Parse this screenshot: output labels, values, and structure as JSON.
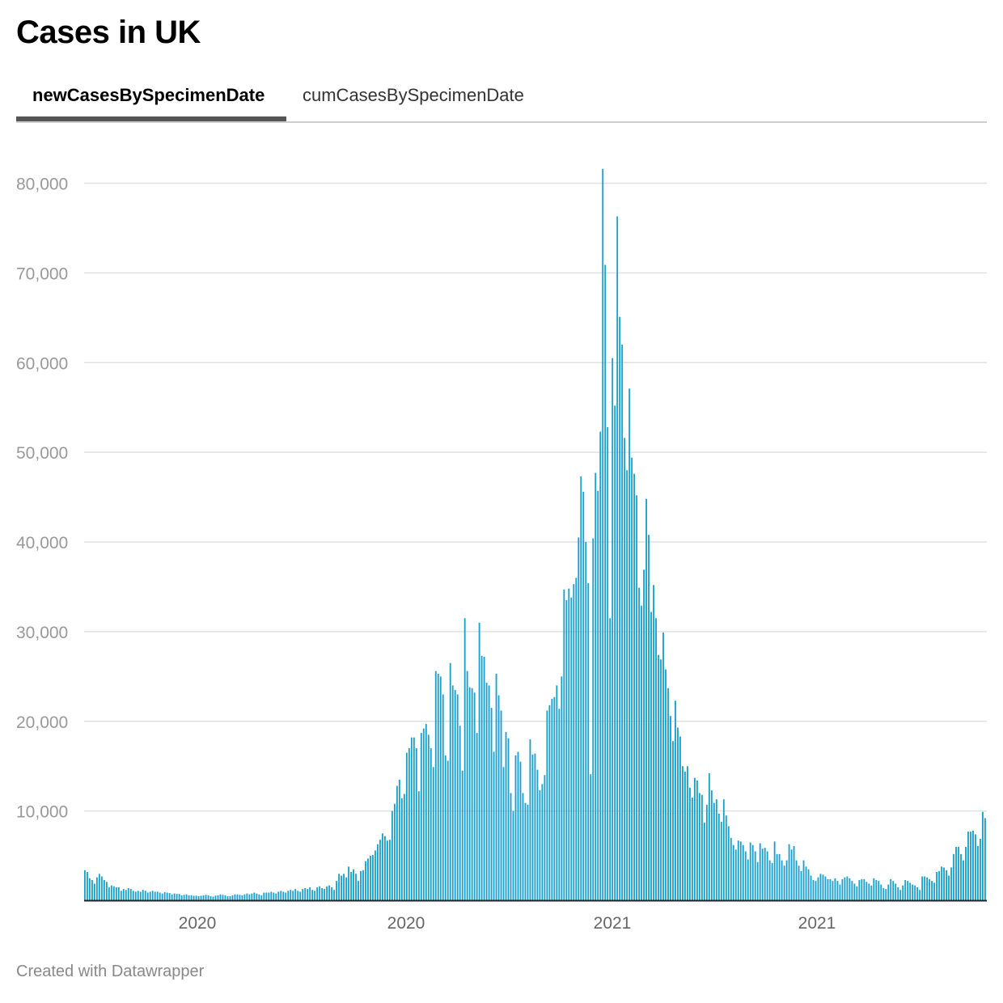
{
  "header": {
    "title": "Cases in UK"
  },
  "tabs": [
    {
      "label": "newCasesBySpecimenDate",
      "active": true
    },
    {
      "label": "cumCasesBySpecimenDate",
      "active": false
    }
  ],
  "footer": {
    "credit": "Created with Datawrapper"
  },
  "chart_data": {
    "type": "bar",
    "title": "Cases in UK",
    "xlabel": "",
    "ylabel": "",
    "series_name": "newCasesBySpecimenDate",
    "ylim": [
      0,
      80000
    ],
    "yticks": [
      10000,
      20000,
      30000,
      40000,
      50000,
      60000,
      70000,
      80000
    ],
    "ytick_labels": [
      "10,000",
      "20,000",
      "30,000",
      "40,000",
      "50,000",
      "60,000",
      "70,000",
      "80,000"
    ],
    "xtick_labels": [
      "2020",
      "2020",
      "2021",
      "2021"
    ],
    "grid": true,
    "bar_color": "#1ba1cc",
    "gridline_color": "#e0e0e0",
    "axis_label_color": "#999999",
    "values": [
      3400,
      3200,
      2500,
      2300,
      1900,
      2600,
      3000,
      2700,
      2300,
      2100,
      1500,
      1700,
      1600,
      1500,
      1500,
      1100,
      1300,
      1200,
      1400,
      1300,
      1100,
      1000,
      1100,
      1000,
      1200,
      1100,
      900,
      1000,
      1100,
      1000,
      1000,
      900,
      800,
      950,
      900,
      850,
      700,
      800,
      750,
      750,
      600,
      650,
      700,
      600,
      600,
      550,
      550,
      500,
      550,
      600,
      650,
      600,
      500,
      450,
      550,
      600,
      700,
      650,
      600,
      500,
      500,
      600,
      700,
      700,
      650,
      600,
      700,
      800,
      700,
      800,
      900,
      800,
      700,
      600,
      900,
      900,
      900,
      1000,
      900,
      800,
      1000,
      1100,
      1000,
      900,
      1100,
      1200,
      1100,
      1300,
      1100,
      1000,
      1300,
      1400,
      1300,
      1500,
      1200,
      1100,
      1500,
      1600,
      1400,
      1300,
      1600,
      1700,
      1500,
      1200,
      2200,
      3000,
      2800,
      3000,
      2600,
      3800,
      3200,
      3500,
      3000,
      2200,
      3300,
      3400,
      4400,
      4700,
      5000,
      5100,
      5600,
      6300,
      6800,
      7500,
      7200,
      6700,
      6800,
      10000,
      10800,
      12800,
      13500,
      11400,
      11900,
      16500,
      17000,
      18200,
      18200,
      17000,
      12200,
      18700,
      19200,
      19700,
      18500,
      17000,
      14900,
      25600,
      25300,
      25000,
      23000,
      16200,
      15600,
      26500,
      24000,
      23500,
      23000,
      19500,
      14500,
      31500,
      25600,
      23800,
      23700,
      23200,
      18700,
      31000,
      27300,
      27200,
      24300,
      24000,
      21500,
      16600,
      25300,
      22900,
      21200,
      14900,
      18800,
      18100,
      12000,
      10000,
      16200,
      16600,
      15500,
      12000,
      10900,
      10700,
      18000,
      16300,
      16400,
      14600,
      12300,
      13000,
      14000,
      21200,
      21800,
      22500,
      22700,
      24000,
      21400,
      25000,
      34700,
      33500,
      34800,
      33800,
      35300,
      36000,
      40500,
      47300,
      45600,
      40000,
      35400,
      14100,
      40400,
      47700,
      45700,
      52300,
      81600,
      70900,
      52800,
      31500,
      60500,
      55200,
      76300,
      65100,
      62000,
      51600,
      48000,
      57100,
      49400,
      47600,
      45200,
      34900,
      32900,
      36900,
      44800,
      40800,
      32200,
      35200,
      31500,
      27400,
      26900,
      29900,
      25800,
      23700,
      20600,
      17800,
      22300,
      19300,
      18300,
      15000,
      14400,
      15000,
      12600,
      11500,
      13700,
      13400,
      12000,
      11800,
      8700,
      10700,
      14200,
      12300,
      10900,
      11300,
      9700,
      8800,
      11300,
      9500,
      8300,
      7000,
      6200,
      5700,
      6700,
      6600,
      6200,
      5500,
      4600,
      6500,
      6200,
      5500,
      4300,
      6400,
      5800,
      5900,
      5500,
      4500,
      4200,
      6600,
      5200,
      5200,
      4500,
      3900,
      4500,
      6300,
      5700,
      6100,
      4500,
      3900,
      3300,
      4500,
      3800,
      3500,
      2800,
      2300,
      2200,
      2600,
      3000,
      2900,
      2700,
      2400,
      2400,
      2200,
      2500,
      2200,
      1800,
      2400,
      2600,
      2700,
      2500,
      2200,
      1900,
      1600,
      2300,
      2400,
      2400,
      2100,
      1900,
      1700,
      2500,
      2300,
      2200,
      1800,
      1400,
      1300,
      1800,
      2400,
      2200,
      1900,
      1500,
      1200,
      1700,
      2300,
      2200,
      2000,
      1800,
      1700,
      1500,
      1200,
      2700,
      2700,
      2600,
      2400,
      2200,
      2000,
      3200,
      3300,
      3800,
      3700,
      3400,
      2800,
      3700,
      5200,
      6000,
      6000,
      5200,
      4500,
      6000,
      7700,
      7700,
      7800,
      7400,
      6100,
      6900,
      9900,
      9200
    ]
  }
}
